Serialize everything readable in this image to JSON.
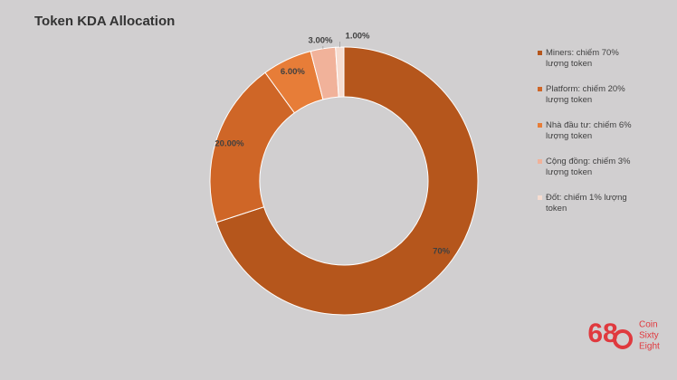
{
  "chart_data": {
    "type": "donut",
    "title": "Token KDA Allocation",
    "categories": [
      "Miners: chiếm 70% lượng token",
      "Platform: chiếm 20% lượng token",
      "Nhà đầu tư: chiếm 6% lượng token",
      "Cộng đồng: chiếm 3% lượng token",
      "Đốt: chiếm 1% lượng token"
    ],
    "values": [
      70,
      20,
      6,
      3,
      1
    ],
    "value_labels": [
      "70%",
      "20.00%",
      "6.00%",
      "3.00%",
      "1.00%"
    ],
    "colors": [
      "#b5561c",
      "#cf6627",
      "#e77d38",
      "#f1b29a",
      "#f6dcd0"
    ],
    "legend": "right"
  },
  "watermark": {
    "logo": "68",
    "lines": [
      "Coin",
      "Sixty",
      "Eight"
    ]
  }
}
